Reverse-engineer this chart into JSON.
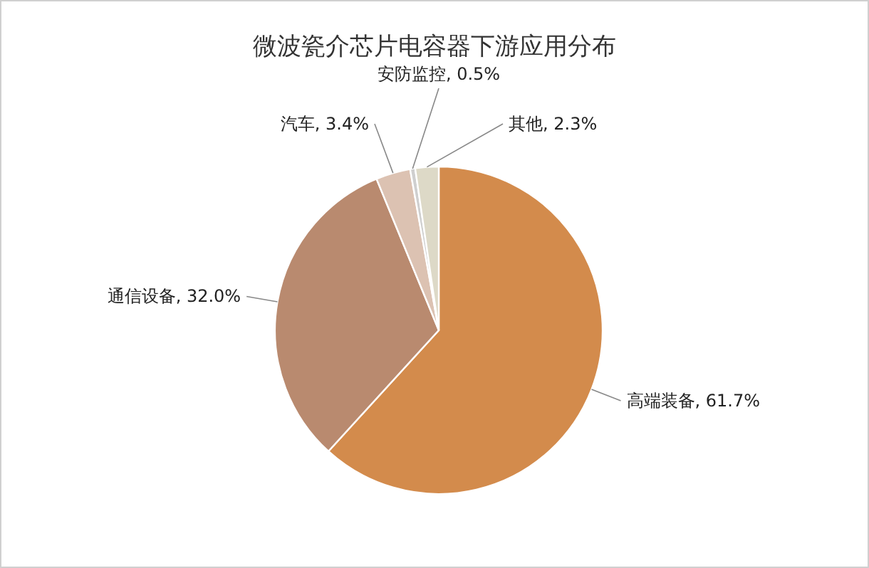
{
  "chart_data": {
    "type": "pie",
    "title": "微波瓷介芯片电容器下游应用分布",
    "categories": [
      "高端装备",
      "通信设备",
      "汽车",
      "安防监控",
      "其他"
    ],
    "values": [
      61.7,
      32.0,
      3.4,
      0.5,
      2.3
    ],
    "value_labels": [
      "61.7%",
      "32.0%",
      "3.4%",
      "0.5%",
      "2.3%"
    ],
    "colors": [
      "#d38b4c",
      "#b98a6f",
      "#dcc2b2",
      "#cfcfcf",
      "#ddd9c7"
    ],
    "legend": false
  }
}
